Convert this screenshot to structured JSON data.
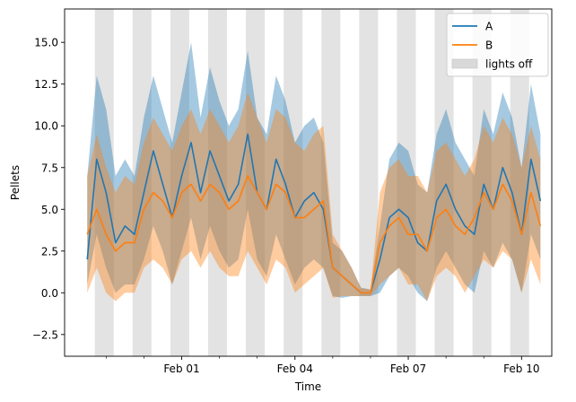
{
  "chart_data": {
    "type": "line",
    "title": "",
    "xlabel": "Time",
    "ylabel": "Pellets",
    "x_unit": "days",
    "x_origin_label": "Jan 29 12:00",
    "xlim": [
      -0.6,
      12.3
    ],
    "ylim": [
      -3.8,
      17.0
    ],
    "xticks": [
      {
        "value": 2.5,
        "label": "Feb 01"
      },
      {
        "value": 5.5,
        "label": "Feb 04"
      },
      {
        "value": 8.5,
        "label": "Feb 07"
      },
      {
        "value": 11.5,
        "label": "Feb 10"
      }
    ],
    "minor_xticks": [
      0.5,
      1.5,
      3.5,
      4.5,
      6.5,
      7.5,
      9.5,
      10.5
    ],
    "yticks": [
      {
        "value": -2.5,
        "label": "−2.5"
      },
      {
        "value": 0.0,
        "label": "0.0"
      },
      {
        "value": 2.5,
        "label": "2.5"
      },
      {
        "value": 5.0,
        "label": "5.0"
      },
      {
        "value": 7.5,
        "label": "7.5"
      },
      {
        "value": 10.0,
        "label": "10.0"
      },
      {
        "value": 12.5,
        "label": "12.5"
      },
      {
        "value": 15.0,
        "label": "15.0"
      }
    ],
    "shaded_periods": [
      [
        0.2,
        0.7
      ],
      [
        1.2,
        1.7
      ],
      [
        2.2,
        2.7
      ],
      [
        3.2,
        3.7
      ],
      [
        4.2,
        4.7
      ],
      [
        5.2,
        5.7
      ],
      [
        6.2,
        6.7
      ],
      [
        7.2,
        7.7
      ],
      [
        8.2,
        8.7
      ],
      [
        9.2,
        9.7
      ],
      [
        10.2,
        10.7
      ],
      [
        11.2,
        11.7
      ]
    ],
    "legend_position": "top-right",
    "legend": [
      {
        "label": "A",
        "kind": "line",
        "color": "#1f77b4"
      },
      {
        "label": "B",
        "kind": "line",
        "color": "#ff7f0e"
      },
      {
        "label": "lights off",
        "kind": "patch",
        "color": "#d9d9d9"
      }
    ],
    "series": [
      {
        "name": "A",
        "color": "#1f77b4",
        "x": [
          0,
          0.25,
          0.5,
          0.75,
          1,
          1.25,
          1.5,
          1.75,
          2,
          2.25,
          2.5,
          2.75,
          3,
          3.25,
          3.5,
          3.75,
          4,
          4.25,
          4.5,
          4.75,
          5,
          5.25,
          5.5,
          5.75,
          6,
          6.25,
          6.5,
          6.75,
          7,
          7.25,
          7.5,
          7.75,
          8,
          8.25,
          8.5,
          8.75,
          9,
          9.25,
          9.5,
          9.75,
          10,
          10.25,
          10.5,
          10.75,
          11,
          11.25,
          11.5,
          11.75,
          12
        ],
        "y": [
          2.0,
          8.0,
          6.0,
          3.0,
          4.0,
          3.5,
          6.0,
          8.5,
          6.5,
          4.5,
          7.0,
          9.0,
          6.0,
          8.5,
          7.0,
          5.5,
          6.5,
          9.5,
          6.0,
          5.0,
          8.0,
          6.5,
          4.5,
          5.5,
          6.0,
          5.0,
          1.5,
          1.0,
          0.5,
          0.0,
          0.0,
          2.0,
          4.5,
          5.0,
          4.5,
          3.0,
          2.5,
          5.5,
          6.5,
          5.0,
          4.0,
          3.5,
          6.5,
          5.0,
          7.5,
          6.0,
          3.5,
          8.0,
          5.5
        ],
        "band_low": [
          0.5,
          3.5,
          1.5,
          0.0,
          0.5,
          0.5,
          2.0,
          4.0,
          2.5,
          0.5,
          2.5,
          4.5,
          2.0,
          4.0,
          2.5,
          1.5,
          2.0,
          5.0,
          2.0,
          1.0,
          3.5,
          2.0,
          0.5,
          1.5,
          2.0,
          1.5,
          -0.2,
          -0.3,
          -0.2,
          -0.2,
          -0.2,
          0.0,
          1.0,
          1.5,
          1.0,
          0.0,
          -0.5,
          1.5,
          2.5,
          1.5,
          0.5,
          0.0,
          2.5,
          1.5,
          3.0,
          2.0,
          0.0,
          3.5,
          2.0
        ],
        "band_high": [
          7.0,
          13.0,
          11.0,
          7.0,
          8.0,
          7.0,
          10.5,
          13.0,
          11.0,
          9.0,
          12.0,
          15.0,
          10.5,
          13.5,
          11.5,
          10.0,
          11.0,
          14.5,
          10.5,
          9.5,
          13.0,
          11.5,
          9.0,
          10.0,
          10.5,
          9.0,
          3.0,
          2.5,
          1.5,
          0.3,
          0.2,
          4.0,
          8.0,
          9.0,
          8.5,
          6.5,
          6.0,
          9.5,
          11.0,
          9.0,
          8.0,
          7.0,
          11.0,
          9.5,
          12.0,
          10.5,
          7.5,
          12.5,
          9.5
        ]
      },
      {
        "name": "B",
        "color": "#ff7f0e",
        "x": [
          0,
          0.25,
          0.5,
          0.75,
          1,
          1.25,
          1.5,
          1.75,
          2,
          2.25,
          2.5,
          2.75,
          3,
          3.25,
          3.5,
          3.75,
          4,
          4.25,
          4.5,
          4.75,
          5,
          5.25,
          5.5,
          5.75,
          6,
          6.25,
          6.5,
          6.75,
          7,
          7.25,
          7.5,
          7.75,
          8,
          8.25,
          8.5,
          8.75,
          9,
          9.25,
          9.5,
          9.75,
          10,
          10.25,
          10.5,
          10.75,
          11,
          11.25,
          11.5,
          11.75,
          12
        ],
        "y": [
          3.5,
          5.0,
          3.5,
          2.5,
          3.0,
          3.0,
          5.0,
          6.0,
          5.5,
          4.5,
          6.0,
          6.5,
          5.5,
          6.5,
          6.0,
          5.0,
          5.5,
          7.0,
          6.0,
          5.0,
          6.5,
          6.0,
          4.5,
          4.5,
          5.0,
          5.5,
          1.5,
          1.0,
          0.5,
          0.0,
          0.0,
          3.0,
          4.0,
          4.5,
          3.5,
          3.5,
          2.5,
          4.5,
          5.0,
          4.0,
          3.5,
          4.5,
          6.0,
          5.0,
          6.5,
          5.5,
          3.5,
          6.0,
          4.0
        ],
        "band_low": [
          0.0,
          1.5,
          0.0,
          -0.5,
          0.0,
          0.0,
          1.5,
          2.0,
          1.5,
          0.5,
          2.0,
          2.5,
          1.5,
          2.5,
          1.5,
          1.0,
          1.0,
          2.5,
          1.5,
          0.5,
          2.0,
          1.5,
          0.0,
          0.5,
          1.0,
          1.5,
          -0.3,
          -0.2,
          -0.2,
          -0.2,
          -0.2,
          0.5,
          1.0,
          1.5,
          0.5,
          0.5,
          -0.5,
          1.0,
          1.5,
          1.0,
          0.0,
          1.0,
          2.0,
          1.5,
          2.5,
          2.0,
          0.0,
          2.0,
          0.5
        ],
        "band_high": [
          7.0,
          9.5,
          7.5,
          6.0,
          7.0,
          6.5,
          9.0,
          10.5,
          9.5,
          8.5,
          10.0,
          11.0,
          9.5,
          11.0,
          10.0,
          9.0,
          10.0,
          12.0,
          10.5,
          9.0,
          11.0,
          10.5,
          9.0,
          8.5,
          9.5,
          10.0,
          3.5,
          2.5,
          1.5,
          0.3,
          0.2,
          6.0,
          7.5,
          8.0,
          7.0,
          7.0,
          6.0,
          8.5,
          9.0,
          8.0,
          7.0,
          8.0,
          10.0,
          9.0,
          10.5,
          9.5,
          7.5,
          10.0,
          8.0
        ]
      }
    ]
  }
}
